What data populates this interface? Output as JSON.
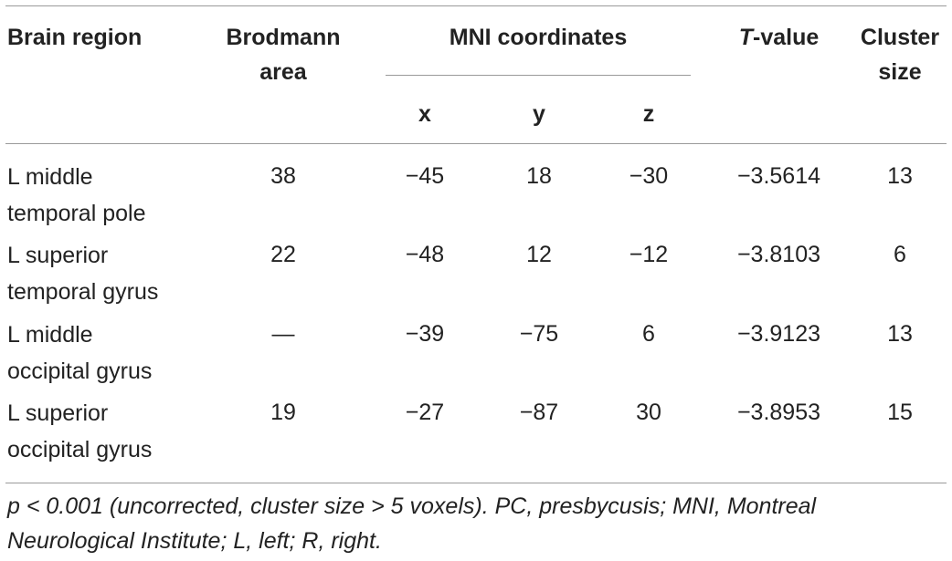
{
  "table": {
    "headers": {
      "brain_region": "Brain region",
      "brodmann_line1": "Brodmann",
      "brodmann_line2": "area",
      "mni": "MNI coordinates",
      "x": "x",
      "y": "y",
      "z": "z",
      "t_italic": "T",
      "t_rest": "-value",
      "cluster_line1": "Cluster",
      "cluster_line2": "size"
    },
    "rows": [
      {
        "region_line1": "L middle",
        "region_line2": "temporal pole",
        "brodmann": "38",
        "x": "−45",
        "y": "18",
        "z": "−30",
        "t": "−3.5614",
        "cluster": "13"
      },
      {
        "region_line1": "L superior",
        "region_line2": "temporal gyrus",
        "brodmann": "22",
        "x": "−48",
        "y": "12",
        "z": "−12",
        "t": "−3.8103",
        "cluster": "6"
      },
      {
        "region_line1": "L middle",
        "region_line2": "occipital gyrus",
        "brodmann": "—",
        "x": "−39",
        "y": "−75",
        "z": "6",
        "t": "−3.9123",
        "cluster": "13"
      },
      {
        "region_line1": "L superior",
        "region_line2": "occipital gyrus",
        "brodmann": "19",
        "x": "−27",
        "y": "−87",
        "z": "30",
        "t": "−3.8953",
        "cluster": "15"
      }
    ],
    "footnote_line1": "p < 0.001 (uncorrected, cluster size > 5 voxels). PC, presbycusis; MNI, Montreal",
    "footnote_line2": "Neurological Institute; L, left; R, right."
  }
}
